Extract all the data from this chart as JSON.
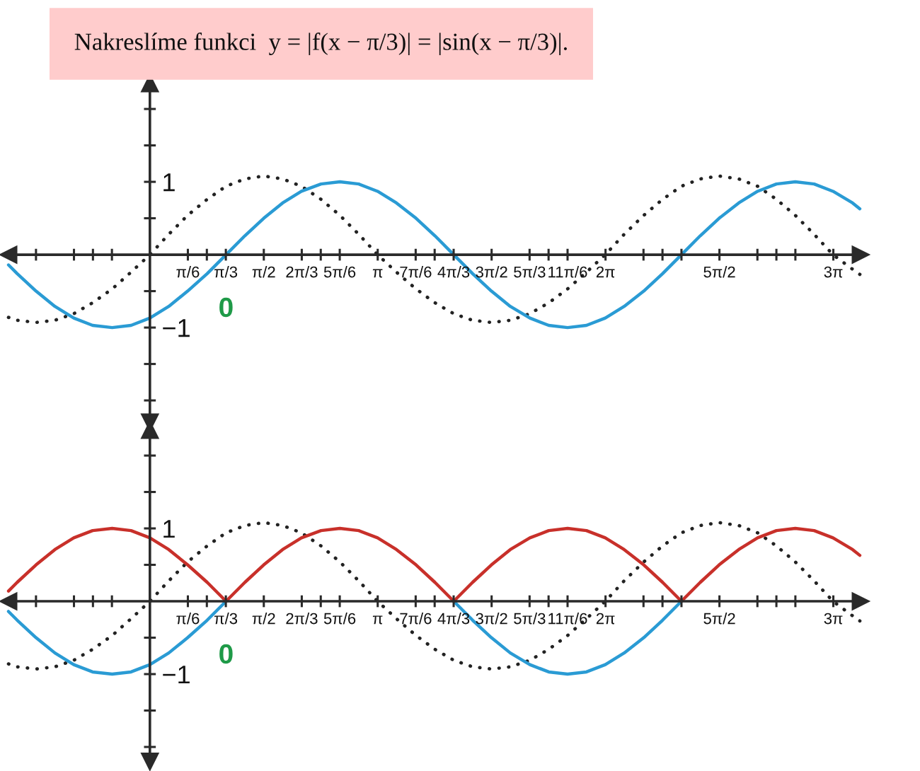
{
  "chart_data": [
    {
      "type": "line",
      "title": "Nakreslíme funkci  y = |f(x − π/3)| = |sin(x − π/3)|.",
      "x": [
        -1.95,
        -1.83,
        -1.57,
        -1.31,
        -1.05,
        -0.79,
        -0.52,
        -0.26,
        0,
        0.26,
        0.52,
        0.79,
        1.05,
        1.31,
        1.57,
        1.83,
        2.09,
        2.36,
        2.62,
        2.88,
        3.14,
        3.4,
        3.67,
        3.93,
        4.19,
        4.45,
        4.71,
        4.97,
        5.24,
        5.5,
        5.76,
        6.02,
        6.28,
        6.54,
        6.81,
        7.07,
        7.33,
        7.59,
        7.85,
        8.12,
        8.38,
        8.64,
        8.9,
        9.16,
        9.42,
        9.69,
        9.79
      ],
      "series": [
        {
          "color": "#222222",
          "line_style": "dotted",
          "values": [
            -0.86,
            -0.9,
            -0.93,
            -0.9,
            -0.81,
            -0.66,
            -0.47,
            -0.24,
            0,
            0.28,
            0.54,
            0.76,
            0.94,
            1.04,
            1.08,
            1.04,
            0.94,
            0.76,
            0.54,
            0.28,
            0,
            -0.24,
            -0.47,
            -0.66,
            -0.81,
            -0.9,
            -0.93,
            -0.9,
            -0.81,
            -0.66,
            -0.47,
            -0.24,
            0,
            0.28,
            0.54,
            0.76,
            0.94,
            1.04,
            1.08,
            1.04,
            0.94,
            0.76,
            0.54,
            0.28,
            0,
            -0.2,
            -0.27
          ]
        },
        {
          "color": "#2a9bd4",
          "line_style": "solid",
          "values": [
            -0.14,
            -0.26,
            -0.5,
            -0.71,
            -0.87,
            -0.97,
            -1,
            -0.97,
            -0.87,
            -0.71,
            -0.5,
            -0.26,
            0,
            0.26,
            0.5,
            0.71,
            0.87,
            0.97,
            1,
            0.97,
            0.87,
            0.71,
            0.5,
            0.26,
            0,
            -0.26,
            -0.5,
            -0.71,
            -0.87,
            -0.97,
            -1,
            -0.97,
            -0.87,
            -0.71,
            -0.5,
            -0.26,
            0,
            0.26,
            0.5,
            0.71,
            0.87,
            0.97,
            1,
            0.97,
            0.87,
            0.71,
            0.63
          ]
        }
      ],
      "xlim": [
        -1.95,
        9.8
      ],
      "ylim": [
        -2.3,
        2.35
      ],
      "xticks": [
        {
          "value": -1.5708,
          "label": null
        },
        {
          "value": -1.0472,
          "label": null
        },
        {
          "value": -0.7854,
          "label": null
        },
        {
          "value": -0.5236,
          "label": null
        },
        {
          "value": 0.5236,
          "label": "π/6"
        },
        {
          "value": 0.7854,
          "label": null
        },
        {
          "value": 1.0472,
          "label": "π/3"
        },
        {
          "value": 1.5708,
          "label": "π/2"
        },
        {
          "value": 2.0944,
          "label": "2π/3"
        },
        {
          "value": 2.3562,
          "label": null
        },
        {
          "value": 2.618,
          "label": "5π/6"
        },
        {
          "value": 3.1416,
          "label": "π"
        },
        {
          "value": 3.6652,
          "label": "7π/6"
        },
        {
          "value": 3.927,
          "label": null
        },
        {
          "value": 4.1888,
          "label": "4π/3"
        },
        {
          "value": 4.7124,
          "label": "3π/2"
        },
        {
          "value": 5.236,
          "label": "5π/3"
        },
        {
          "value": 5.4978,
          "label": null
        },
        {
          "value": 5.7596,
          "label": "11π/6"
        },
        {
          "value": 6.2832,
          "label": "2π"
        },
        {
          "value": 6.8068,
          "label": null
        },
        {
          "value": 7.0686,
          "label": null
        },
        {
          "value": 7.3304,
          "label": null
        },
        {
          "value": 7.854,
          "label": "5π/2"
        },
        {
          "value": 8.3776,
          "label": null
        },
        {
          "value": 8.6394,
          "label": null
        },
        {
          "value": 8.9012,
          "label": null
        },
        {
          "value": 9.4248,
          "label": "3π"
        }
      ],
      "yticks": [
        {
          "value": -2,
          "label": null
        },
        {
          "value": -1.5,
          "label": null
        },
        {
          "value": -1,
          "label": "−1"
        },
        {
          "value": -0.5,
          "label": null
        },
        {
          "value": 0.5,
          "label": null
        },
        1,
        {
          "value": 1.5,
          "label": null
        },
        {
          "value": 2,
          "label": null
        }
      ],
      "annotations": [
        {
          "text": "0",
          "x": 1.05,
          "y": 0
        }
      ]
    },
    {
      "type": "line",
      "x": [
        -1.95,
        -1.83,
        -1.57,
        -1.31,
        -1.05,
        -0.79,
        -0.52,
        -0.26,
        0,
        0.26,
        0.52,
        0.79,
        1.05,
        1.31,
        1.57,
        1.83,
        2.09,
        2.36,
        2.62,
        2.88,
        3.14,
        3.4,
        3.67,
        3.93,
        4.19,
        4.45,
        4.71,
        4.97,
        5.24,
        5.5,
        5.76,
        6.02,
        6.28,
        6.54,
        6.81,
        7.07,
        7.33,
        7.59,
        7.85,
        8.12,
        8.38,
        8.64,
        8.9,
        9.16,
        9.42,
        9.69,
        9.79
      ],
      "series": [
        {
          "color": "#222222",
          "line_style": "dotted",
          "values": [
            -0.86,
            -0.9,
            -0.93,
            -0.9,
            -0.81,
            -0.66,
            -0.47,
            -0.24,
            0,
            0.28,
            0.54,
            0.76,
            0.94,
            1.04,
            1.08,
            1.04,
            0.94,
            0.76,
            0.54,
            0.28,
            0,
            -0.24,
            -0.47,
            -0.66,
            -0.81,
            -0.9,
            -0.93,
            -0.9,
            -0.81,
            -0.66,
            -0.47,
            -0.24,
            0,
            0.28,
            0.54,
            0.76,
            0.94,
            1.04,
            1.08,
            1.04,
            0.94,
            0.76,
            0.54,
            0.28,
            0,
            -0.2,
            -0.27
          ]
        },
        {
          "color": "#2a9bd4",
          "line_style": "solid",
          "values": [
            -0.14,
            -0.26,
            -0.5,
            -0.71,
            -0.87,
            -0.97,
            -1,
            -0.97,
            -0.87,
            -0.71,
            -0.5,
            -0.26,
            0,
            null,
            null,
            null,
            null,
            null,
            null,
            null,
            null,
            null,
            null,
            null,
            0,
            -0.26,
            -0.5,
            -0.71,
            -0.87,
            -0.97,
            -1,
            -0.97,
            -0.87,
            -0.71,
            -0.5,
            -0.26,
            0,
            null,
            null,
            null,
            null,
            null,
            null,
            null,
            null,
            null,
            null
          ]
        },
        {
          "color": "#c8302a",
          "line_style": "solid",
          "values": [
            0.14,
            0.26,
            0.5,
            0.71,
            0.87,
            0.97,
            1,
            0.97,
            0.87,
            0.71,
            0.5,
            0.26,
            0,
            0.26,
            0.5,
            0.71,
            0.87,
            0.97,
            1,
            0.97,
            0.87,
            0.71,
            0.5,
            0.26,
            0,
            0.26,
            0.5,
            0.71,
            0.87,
            0.97,
            1,
            0.97,
            0.87,
            0.71,
            0.5,
            0.26,
            0,
            0.26,
            0.5,
            0.71,
            0.87,
            0.97,
            1,
            0.97,
            0.87,
            0.71,
            0.63
          ]
        }
      ],
      "xlim": [
        -1.95,
        9.8
      ],
      "ylim": [
        -2.2,
        2.35
      ],
      "xticks": [
        {
          "value": -1.5708,
          "label": null
        },
        {
          "value": -1.0472,
          "label": null
        },
        {
          "value": -0.7854,
          "label": null
        },
        {
          "value": -0.5236,
          "label": null
        },
        {
          "value": 0.5236,
          "label": "π/6"
        },
        {
          "value": 0.7854,
          "label": null
        },
        {
          "value": 1.0472,
          "label": "π/3"
        },
        {
          "value": 1.5708,
          "label": "π/2"
        },
        {
          "value": 2.0944,
          "label": "2π/3"
        },
        {
          "value": 2.3562,
          "label": null
        },
        {
          "value": 2.618,
          "label": "5π/6"
        },
        {
          "value": 3.1416,
          "label": "π"
        },
        {
          "value": 3.6652,
          "label": "7π/6"
        },
        {
          "value": 3.927,
          "label": null
        },
        {
          "value": 4.1888,
          "label": "4π/3"
        },
        {
          "value": 4.7124,
          "label": "3π/2"
        },
        {
          "value": 5.236,
          "label": "5π/3"
        },
        {
          "value": 5.4978,
          "label": null
        },
        {
          "value": 5.7596,
          "label": "11π/6"
        },
        {
          "value": 6.2832,
          "label": "2π"
        },
        {
          "value": 6.8068,
          "label": null
        },
        {
          "value": 7.0686,
          "label": null
        },
        {
          "value": 7.3304,
          "label": null
        },
        {
          "value": 7.854,
          "label": "5π/2"
        },
        {
          "value": 8.3776,
          "label": null
        },
        {
          "value": 8.6394,
          "label": null
        },
        {
          "value": 8.9012,
          "label": null
        },
        {
          "value": 9.4248,
          "label": "3π"
        }
      ],
      "yticks": [
        {
          "value": -2,
          "label": null
        },
        {
          "value": -1.5,
          "label": null
        },
        {
          "value": -1,
          "label": "−1"
        },
        {
          "value": -0.5,
          "label": null
        },
        {
          "value": 0.5,
          "label": null
        },
        1,
        {
          "value": 1.5,
          "label": null
        },
        {
          "value": 2,
          "label": null
        }
      ],
      "annotations": [
        {
          "text": "0",
          "x": 1.05,
          "y": 0
        }
      ]
    }
  ]
}
